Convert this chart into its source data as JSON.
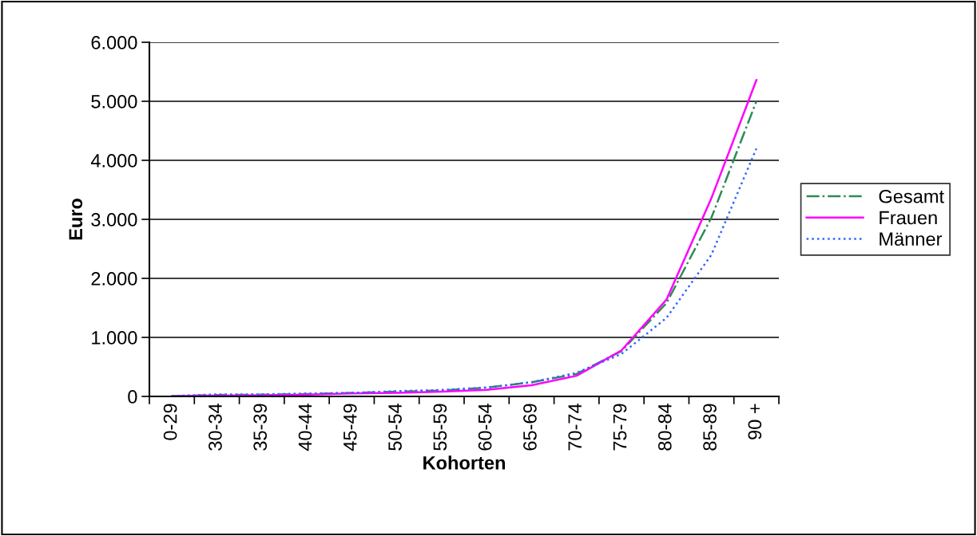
{
  "chart_data": {
    "type": "line",
    "xlabel": "Kohorten",
    "ylabel": "Euro",
    "categories": [
      "0-29",
      "30-34",
      "35-39",
      "40-44",
      "45-49",
      "50-54",
      "55-59",
      "60-54",
      "65-69",
      "70-74",
      "75-79",
      "80-84",
      "85-89",
      "90 +"
    ],
    "series": [
      {
        "name": "Gesamt",
        "color": "#2e8b57",
        "line_style": "dashdot",
        "values": [
          5,
          25,
          30,
          40,
          60,
          80,
          100,
          150,
          240,
          380,
          770,
          1580,
          3030,
          5000
        ]
      },
      {
        "name": "Frauen",
        "color": "#ff00ff",
        "line_style": "solid",
        "values": [
          5,
          15,
          20,
          30,
          50,
          60,
          80,
          110,
          190,
          350,
          780,
          1640,
          3360,
          5360
        ]
      },
      {
        "name": "Männer",
        "color": "#3366ff",
        "line_style": "dotted",
        "values": [
          5,
          35,
          35,
          50,
          60,
          90,
          110,
          150,
          240,
          400,
          720,
          1330,
          2400,
          4200
        ]
      }
    ],
    "ylim": [
      0,
      6000
    ],
    "yticks": [
      {
        "value": 0,
        "label": "0"
      },
      {
        "value": 1000,
        "label": "1.000"
      },
      {
        "value": 2000,
        "label": "2.000"
      },
      {
        "value": 3000,
        "label": "3.000"
      },
      {
        "value": 4000,
        "label": "4.000"
      },
      {
        "value": 5000,
        "label": "5.000"
      },
      {
        "value": 6000,
        "label": "6.000"
      }
    ],
    "grid": "y",
    "legend": "right",
    "marker": "none"
  }
}
